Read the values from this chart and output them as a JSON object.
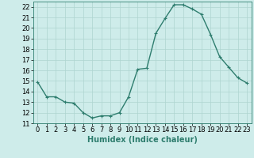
{
  "x": [
    0,
    1,
    2,
    3,
    4,
    5,
    6,
    7,
    8,
    9,
    10,
    11,
    12,
    13,
    14,
    15,
    16,
    17,
    18,
    19,
    20,
    21,
    22,
    23
  ],
  "y": [
    14.9,
    13.5,
    13.5,
    13.0,
    12.9,
    12.0,
    11.5,
    11.7,
    11.7,
    12.0,
    13.5,
    16.1,
    16.2,
    19.5,
    20.9,
    22.2,
    22.2,
    21.8,
    21.3,
    19.4,
    17.3,
    16.3,
    15.3,
    14.8
  ],
  "line_color": "#2e7d6e",
  "marker": "+",
  "markersize": 3.5,
  "linewidth": 1.0,
  "bg_color": "#ceecea",
  "grid_color": "#aed4d0",
  "xlabel": "Humidex (Indice chaleur)",
  "xlabel_fontsize": 7,
  "tick_fontsize": 6,
  "ylim": [
    11,
    22.5
  ],
  "xlim": [
    -0.5,
    23.5
  ],
  "yticks": [
    11,
    12,
    13,
    14,
    15,
    16,
    17,
    18,
    19,
    20,
    21,
    22
  ],
  "xticks": [
    0,
    1,
    2,
    3,
    4,
    5,
    6,
    7,
    8,
    9,
    10,
    11,
    12,
    13,
    14,
    15,
    16,
    17,
    18,
    19,
    20,
    21,
    22,
    23
  ]
}
